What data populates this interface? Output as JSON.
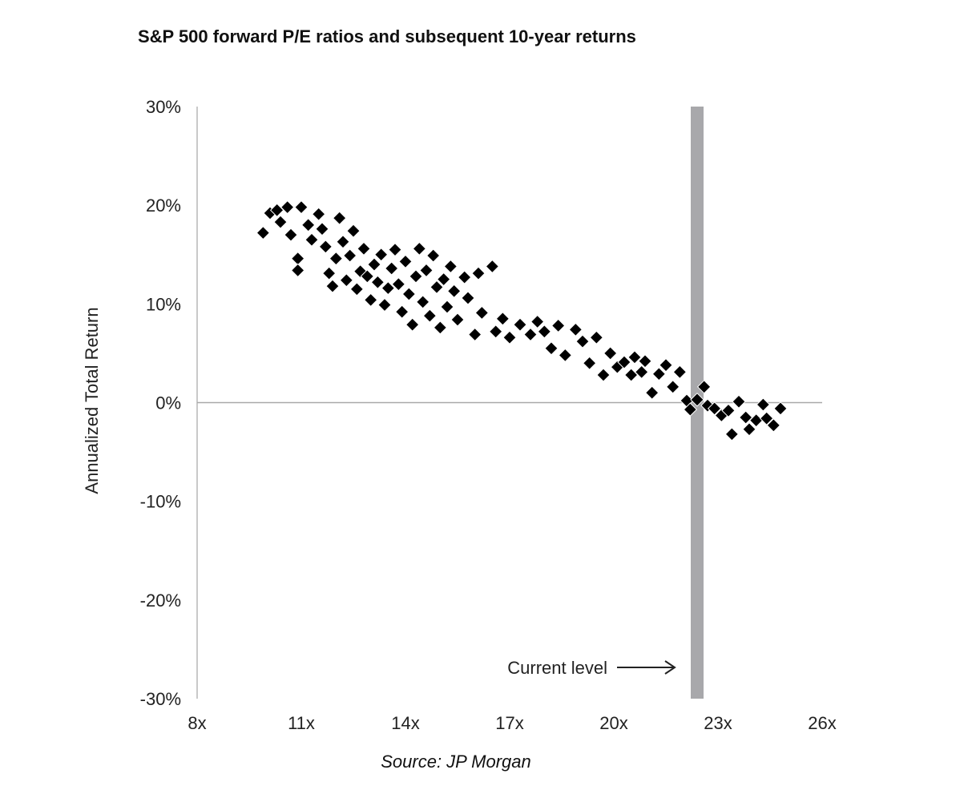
{
  "chart_data": {
    "type": "scatter",
    "title": "S&P 500 forward P/E ratios and subsequent 10-year returns",
    "xlabel": "",
    "ylabel": "Annualized Total Return",
    "xlim": [
      8,
      26
    ],
    "ylim": [
      -30,
      30
    ],
    "x_ticks": [
      8,
      11,
      14,
      17,
      20,
      23,
      26
    ],
    "x_tick_labels": [
      "8x",
      "11x",
      "14x",
      "17x",
      "20x",
      "23x",
      "26x"
    ],
    "y_ticks": [
      30,
      20,
      10,
      0,
      -10,
      -20,
      -30
    ],
    "y_tick_labels": [
      "30%",
      "20%",
      "10%",
      "0%",
      "-10%",
      "-20%",
      "-30%"
    ],
    "grid": false,
    "zero_line": true,
    "marker": "diamond",
    "marker_color": "#000000",
    "current_level": {
      "x": 22.4,
      "label": "Current level",
      "color": "#a8a8ab"
    },
    "source": "Source: JP Morgan",
    "points": [
      [
        9.9,
        17.2
      ],
      [
        10.1,
        19.2
      ],
      [
        10.3,
        19.5
      ],
      [
        10.6,
        19.8
      ],
      [
        10.4,
        18.3
      ],
      [
        10.7,
        17.0
      ],
      [
        10.9,
        14.6
      ],
      [
        10.9,
        13.4
      ],
      [
        11.0,
        19.8
      ],
      [
        11.2,
        18.0
      ],
      [
        11.3,
        16.5
      ],
      [
        11.5,
        19.1
      ],
      [
        11.6,
        17.6
      ],
      [
        11.7,
        15.8
      ],
      [
        11.8,
        13.1
      ],
      [
        11.9,
        11.8
      ],
      [
        12.0,
        14.6
      ],
      [
        12.1,
        18.7
      ],
      [
        12.2,
        16.3
      ],
      [
        12.3,
        12.4
      ],
      [
        12.4,
        14.9
      ],
      [
        12.5,
        17.4
      ],
      [
        12.6,
        11.5
      ],
      [
        12.7,
        13.3
      ],
      [
        12.8,
        15.6
      ],
      [
        12.9,
        12.8
      ],
      [
        13.0,
        10.4
      ],
      [
        13.1,
        14.0
      ],
      [
        13.2,
        12.2
      ],
      [
        13.3,
        15.0
      ],
      [
        13.4,
        9.9
      ],
      [
        13.5,
        11.6
      ],
      [
        13.6,
        13.6
      ],
      [
        13.7,
        15.5
      ],
      [
        13.8,
        12.0
      ],
      [
        13.9,
        9.2
      ],
      [
        14.0,
        14.3
      ],
      [
        14.1,
        11.0
      ],
      [
        14.2,
        7.9
      ],
      [
        14.3,
        12.8
      ],
      [
        14.4,
        15.6
      ],
      [
        14.5,
        10.2
      ],
      [
        14.6,
        13.4
      ],
      [
        14.7,
        8.8
      ],
      [
        14.8,
        14.9
      ],
      [
        14.9,
        11.7
      ],
      [
        15.0,
        7.6
      ],
      [
        15.1,
        12.5
      ],
      [
        15.2,
        9.7
      ],
      [
        15.3,
        13.8
      ],
      [
        15.4,
        11.3
      ],
      [
        15.5,
        8.4
      ],
      [
        15.7,
        12.7
      ],
      [
        15.8,
        10.6
      ],
      [
        16.0,
        6.9
      ],
      [
        16.1,
        13.1
      ],
      [
        16.2,
        9.1
      ],
      [
        16.5,
        13.8
      ],
      [
        16.6,
        7.2
      ],
      [
        16.8,
        8.5
      ],
      [
        17.0,
        6.6
      ],
      [
        17.3,
        7.9
      ],
      [
        17.6,
        6.9
      ],
      [
        17.8,
        8.2
      ],
      [
        18.0,
        7.2
      ],
      [
        18.2,
        5.5
      ],
      [
        18.4,
        7.8
      ],
      [
        18.6,
        4.8
      ],
      [
        18.9,
        7.4
      ],
      [
        19.1,
        6.2
      ],
      [
        19.3,
        4.0
      ],
      [
        19.5,
        6.6
      ],
      [
        19.7,
        2.8
      ],
      [
        19.9,
        5.0
      ],
      [
        20.1,
        3.6
      ],
      [
        20.3,
        4.1
      ],
      [
        20.5,
        2.8
      ],
      [
        20.6,
        4.6
      ],
      [
        20.8,
        3.1
      ],
      [
        20.9,
        4.2
      ],
      [
        21.1,
        1.0
      ],
      [
        21.3,
        2.9
      ],
      [
        21.5,
        3.8
      ],
      [
        21.7,
        1.6
      ],
      [
        21.9,
        3.1
      ],
      [
        22.1,
        0.2
      ],
      [
        22.2,
        -0.7
      ],
      [
        22.4,
        0.3
      ],
      [
        22.6,
        1.6
      ],
      [
        22.7,
        -0.3
      ],
      [
        22.9,
        -0.6
      ],
      [
        23.1,
        -1.3
      ],
      [
        23.3,
        -0.8
      ],
      [
        23.4,
        -3.2
      ],
      [
        23.6,
        0.1
      ],
      [
        23.8,
        -1.5
      ],
      [
        23.9,
        -2.7
      ],
      [
        24.1,
        -1.8
      ],
      [
        24.3,
        -0.2
      ],
      [
        24.4,
        -1.6
      ],
      [
        24.6,
        -2.3
      ],
      [
        24.8,
        -0.6
      ]
    ]
  }
}
